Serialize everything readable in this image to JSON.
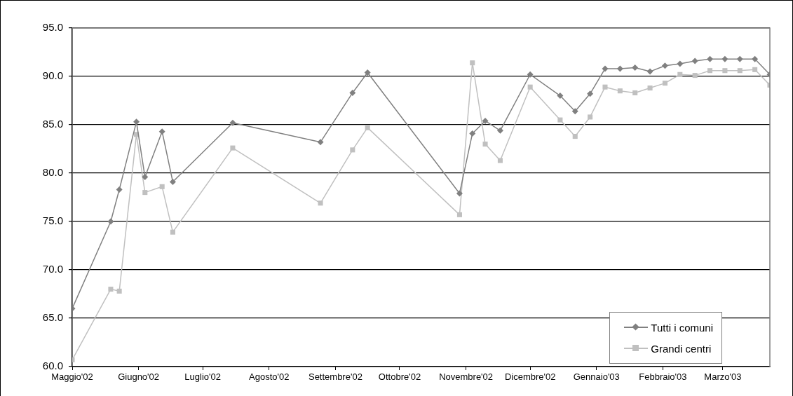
{
  "chart_data": {
    "type": "line",
    "x": [
      "2002-05-01",
      "2002-05-19",
      "2002-05-23",
      "2002-05-31",
      "2002-06-04",
      "2002-06-12",
      "2002-06-17",
      "2002-07-15",
      "2002-08-25",
      "2002-09-09",
      "2002-09-16",
      "2002-10-29",
      "2002-11-04",
      "2002-11-10",
      "2002-11-17",
      "2002-12-01",
      "2002-12-15",
      "2002-12-22",
      "2002-12-29",
      "2003-01-05",
      "2003-01-12",
      "2003-01-19",
      "2003-01-26",
      "2003-02-02",
      "2003-02-09",
      "2003-02-16",
      "2003-02-23",
      "2003-03-02",
      "2003-03-09",
      "2003-03-16",
      "2003-03-23"
    ],
    "series": [
      {
        "name": "Tutti i comuni",
        "color": "#808080",
        "marker": "diamond",
        "values": [
          66.0,
          75.0,
          78.3,
          85.3,
          79.6,
          84.3,
          79.1,
          85.2,
          83.2,
          88.3,
          90.4,
          77.9,
          84.1,
          85.4,
          84.4,
          90.2,
          88.0,
          86.4,
          88.2,
          90.8,
          90.8,
          90.9,
          90.5,
          91.1,
          91.3,
          91.6,
          91.8,
          91.8,
          91.8,
          91.8,
          90.2
        ]
      },
      {
        "name": "Grandi centri",
        "color": "#c0c0c0",
        "marker": "square",
        "values": [
          60.7,
          68.0,
          67.8,
          84.0,
          78.0,
          78.6,
          73.9,
          82.6,
          76.9,
          82.4,
          84.7,
          75.7,
          91.4,
          83.0,
          81.3,
          88.9,
          85.5,
          83.8,
          85.8,
          88.9,
          88.5,
          88.3,
          88.8,
          89.3,
          90.2,
          90.1,
          90.6,
          90.6,
          90.6,
          90.7,
          89.1
        ]
      }
    ],
    "xlim": [
      "2002-05-01",
      "2003-03-23"
    ],
    "xticks": [
      {
        "value": "2002-05-01",
        "label": "Maggio'02"
      },
      {
        "value": "2002-06-01",
        "label": "Giugno'02"
      },
      {
        "value": "2002-07-01",
        "label": "Luglio'02"
      },
      {
        "value": "2002-08-01",
        "label": "Agosto'02"
      },
      {
        "value": "2002-09-01",
        "label": "Settembre'02"
      },
      {
        "value": "2002-10-01",
        "label": "Ottobre'02"
      },
      {
        "value": "2002-11-01",
        "label": "Novembre'02"
      },
      {
        "value": "2002-12-01",
        "label": "Dicembre'02"
      },
      {
        "value": "2003-01-01",
        "label": "Gennaio'03"
      },
      {
        "value": "2003-02-01",
        "label": "Febbraio'03"
      },
      {
        "value": "2003-03-01",
        "label": "Marzo'03"
      }
    ],
    "ylim": [
      60,
      95
    ],
    "yticks": [
      {
        "value": 60,
        "label": "60.0"
      },
      {
        "value": 65,
        "label": "65.0"
      },
      {
        "value": 70,
        "label": "70.0"
      },
      {
        "value": 75,
        "label": "75.0"
      },
      {
        "value": 80,
        "label": "80.0"
      },
      {
        "value": 85,
        "label": "85.0"
      },
      {
        "value": 90,
        "label": "90.0"
      },
      {
        "value": 95,
        "label": "95.0"
      }
    ],
    "grid": "y",
    "legend": "bottom right"
  }
}
